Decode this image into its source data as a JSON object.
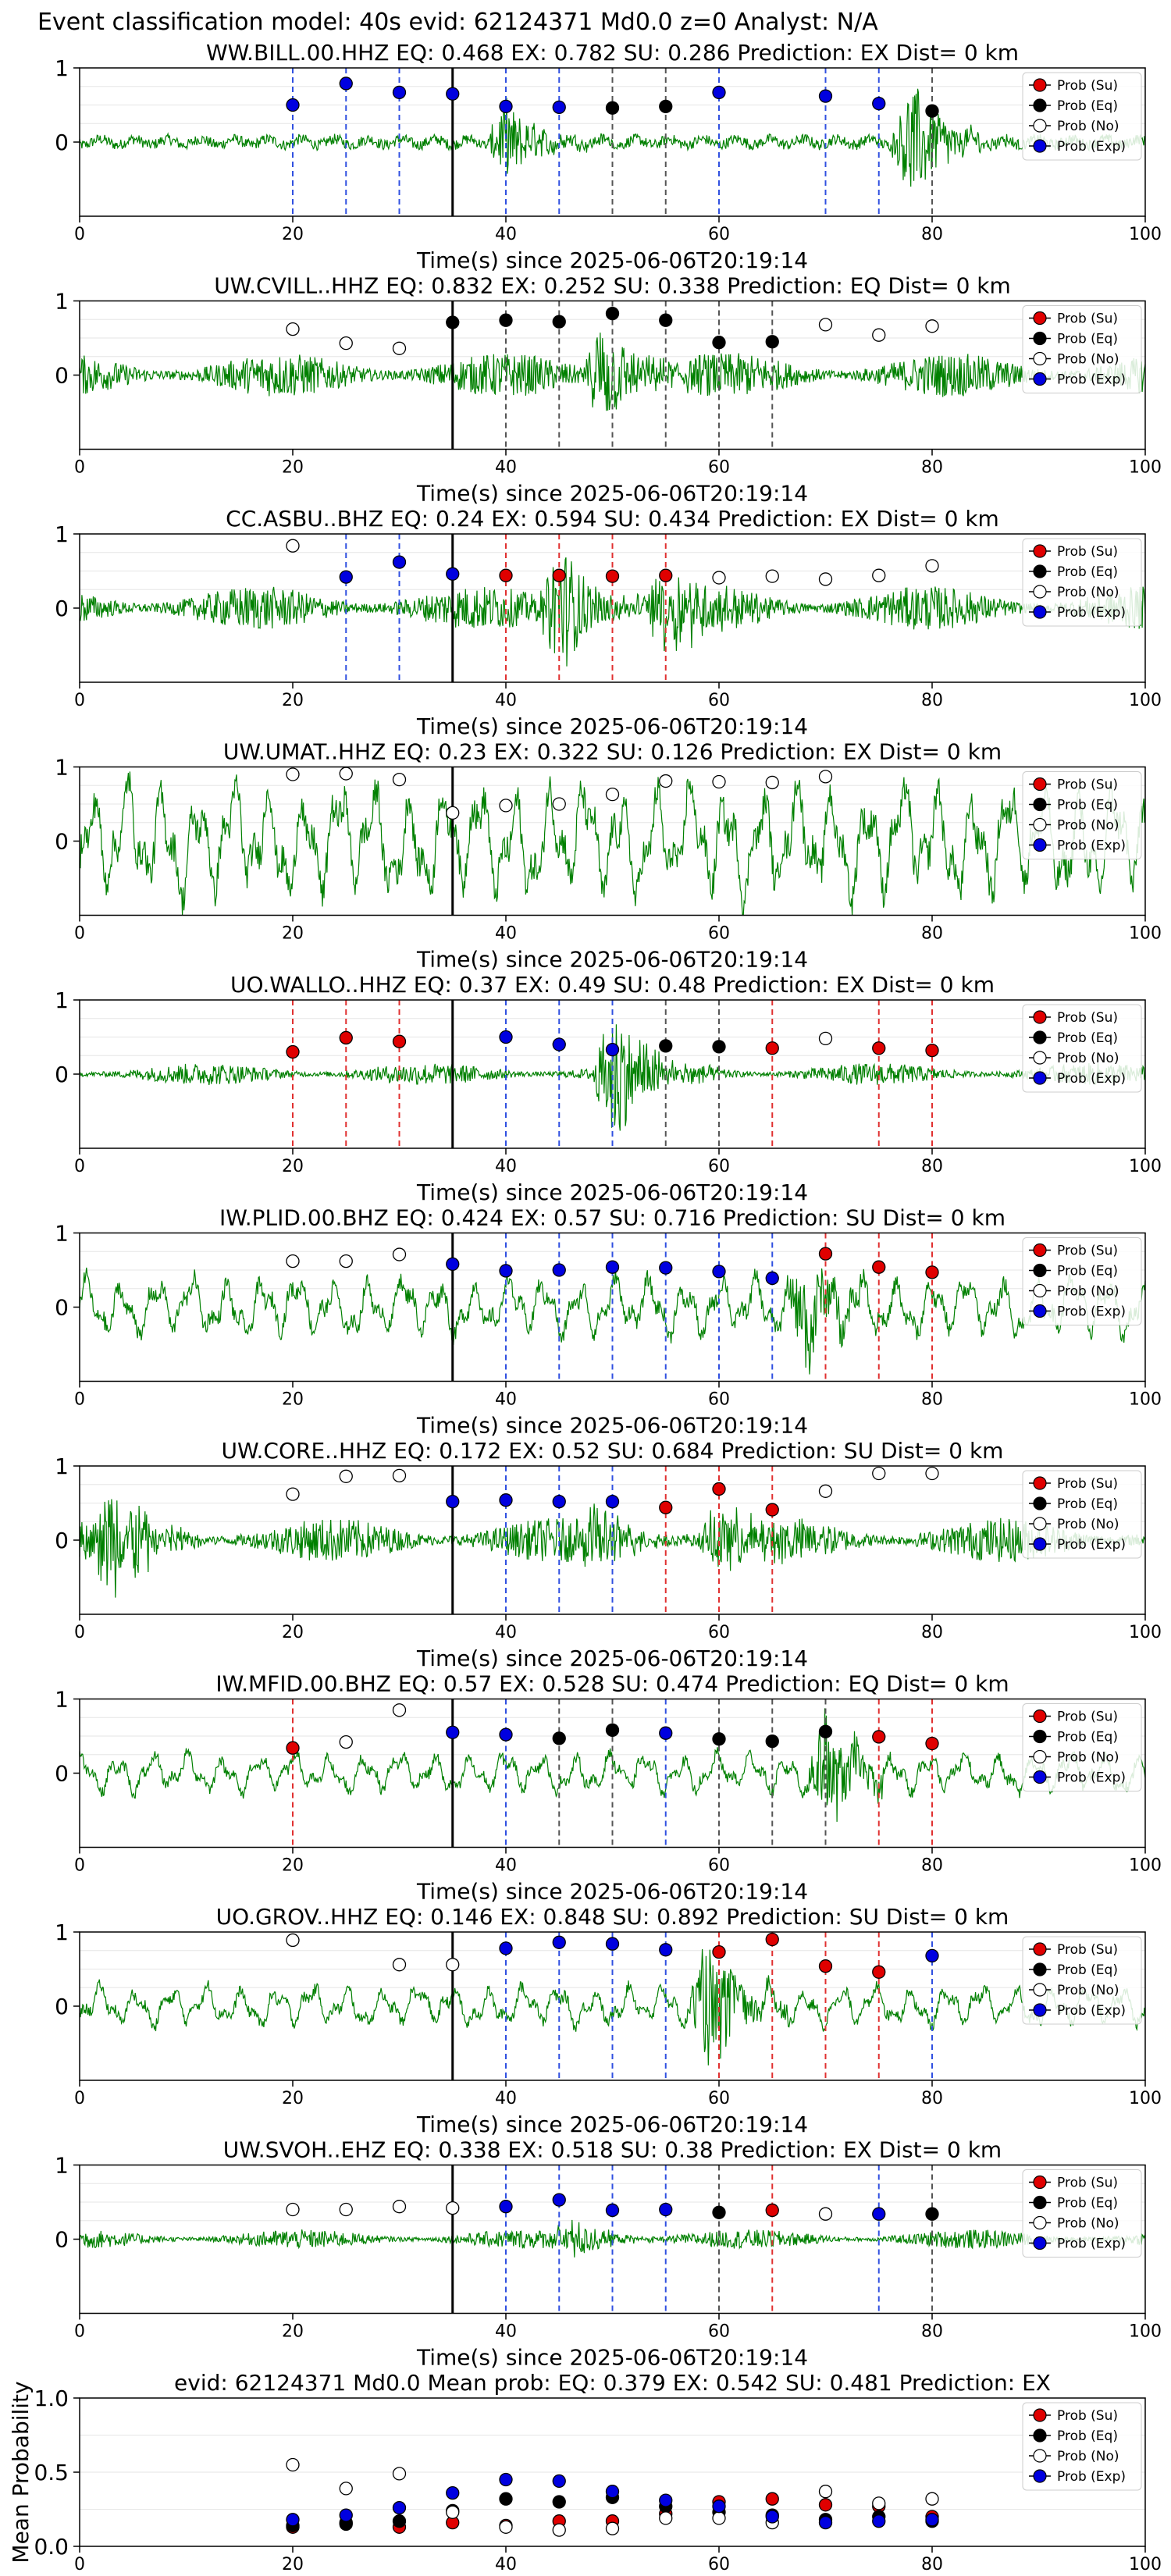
{
  "figure_title": "Event classification model: 40s evid: 62124371 Md0.0 z=0 Analyst: N/A",
  "legend_labels": [
    "Prob (Su)",
    "Prob (Eq)",
    "Prob (No)",
    "Prob (Exp)"
  ],
  "colors": {
    "su": "#e00000",
    "eq": "#000000",
    "no": "#ffffff",
    "exp": "#0000e0",
    "waveform": "#008000",
    "vline_su": "#e03030",
    "vline_eq": "#555555",
    "vline_exp": "#3050e0",
    "origin_line": "#000000"
  },
  "chart_data": [
    {
      "type": "line",
      "title": "WW.BILL.00.HHZ   EQ: 0.468  EX: 0.782  SU: 0.286   Prediction: EX    Dist= 0 km",
      "xlabel": "Time(s) since 2025-06-06T20:19:14",
      "xlim": [
        0,
        100
      ],
      "ylim": [
        -1,
        1
      ],
      "xticks": [
        0,
        20,
        40,
        60,
        80,
        100
      ],
      "yticks": [
        0,
        1
      ],
      "origin_time": 35,
      "waveform": {
        "amplitude": 0.12,
        "character": "low",
        "bursts": [
          [
            40,
            0.55
          ],
          [
            78,
            0.9
          ]
        ]
      },
      "points": [
        {
          "x": 20,
          "y": 0.5,
          "class": "exp"
        },
        {
          "x": 25,
          "y": 0.79,
          "class": "exp"
        },
        {
          "x": 30,
          "y": 0.67,
          "class": "exp"
        },
        {
          "x": 35,
          "y": 0.65,
          "class": "exp"
        },
        {
          "x": 40,
          "y": 0.48,
          "class": "exp"
        },
        {
          "x": 45,
          "y": 0.47,
          "class": "exp"
        },
        {
          "x": 50,
          "y": 0.46,
          "class": "eq"
        },
        {
          "x": 55,
          "y": 0.48,
          "class": "eq"
        },
        {
          "x": 60,
          "y": 0.67,
          "class": "exp"
        },
        {
          "x": 70,
          "y": 0.62,
          "class": "exp"
        },
        {
          "x": 75,
          "y": 0.52,
          "class": "exp"
        },
        {
          "x": 80,
          "y": 0.42,
          "class": "eq"
        }
      ]
    },
    {
      "type": "line",
      "title": "UW.CVILL..HHZ   EQ: 0.832  EX: 0.252  SU: 0.338   Prediction: EQ    Dist= 0 km",
      "xlabel": "Time(s) since 2025-06-06T20:19:14",
      "xlim": [
        0,
        100
      ],
      "ylim": [
        -1,
        1
      ],
      "xticks": [
        0,
        20,
        40,
        60,
        80,
        100
      ],
      "yticks": [
        0,
        1
      ],
      "origin_time": 35,
      "waveform": {
        "amplitude": 0.3,
        "character": "noisy",
        "bursts": [
          [
            49,
            0.8
          ]
        ]
      },
      "points": [
        {
          "x": 20,
          "y": 0.62,
          "class": "no"
        },
        {
          "x": 25,
          "y": 0.43,
          "class": "no"
        },
        {
          "x": 30,
          "y": 0.36,
          "class": "no"
        },
        {
          "x": 35,
          "y": 0.71,
          "class": "eq"
        },
        {
          "x": 40,
          "y": 0.74,
          "class": "eq"
        },
        {
          "x": 45,
          "y": 0.72,
          "class": "eq"
        },
        {
          "x": 50,
          "y": 0.83,
          "class": "eq"
        },
        {
          "x": 55,
          "y": 0.74,
          "class": "eq"
        },
        {
          "x": 60,
          "y": 0.44,
          "class": "eq"
        },
        {
          "x": 65,
          "y": 0.45,
          "class": "eq"
        },
        {
          "x": 70,
          "y": 0.68,
          "class": "no"
        },
        {
          "x": 75,
          "y": 0.54,
          "class": "no"
        },
        {
          "x": 80,
          "y": 0.66,
          "class": "no"
        }
      ]
    },
    {
      "type": "line",
      "title": "CC.ASBU..BHZ   EQ: 0.24  EX: 0.594  SU: 0.434   Prediction: EX    Dist= 0 km",
      "xlabel": "Time(s) since 2025-06-06T20:19:14",
      "xlim": [
        0,
        100
      ],
      "ylim": [
        -1,
        1
      ],
      "xticks": [
        0,
        20,
        40,
        60,
        80,
        100
      ],
      "yticks": [
        0,
        1
      ],
      "origin_time": 35,
      "waveform": {
        "amplitude": 0.3,
        "character": "noisy",
        "bursts": [
          [
            45,
            0.9
          ],
          [
            55,
            0.6
          ]
        ]
      },
      "points": [
        {
          "x": 20,
          "y": 0.84,
          "class": "no"
        },
        {
          "x": 25,
          "y": 0.42,
          "class": "exp"
        },
        {
          "x": 30,
          "y": 0.62,
          "class": "exp"
        },
        {
          "x": 35,
          "y": 0.46,
          "class": "exp"
        },
        {
          "x": 40,
          "y": 0.44,
          "class": "su"
        },
        {
          "x": 45,
          "y": 0.44,
          "class": "su"
        },
        {
          "x": 50,
          "y": 0.43,
          "class": "su"
        },
        {
          "x": 55,
          "y": 0.44,
          "class": "su"
        },
        {
          "x": 60,
          "y": 0.41,
          "class": "no"
        },
        {
          "x": 65,
          "y": 0.43,
          "class": "no"
        },
        {
          "x": 70,
          "y": 0.39,
          "class": "no"
        },
        {
          "x": 75,
          "y": 0.44,
          "class": "no"
        },
        {
          "x": 80,
          "y": 0.57,
          "class": "no"
        }
      ]
    },
    {
      "type": "line",
      "title": "UW.UMAT..HHZ   EQ: 0.23  EX: 0.322  SU: 0.126   Prediction: EX    Dist= 0 km",
      "xlabel": "Time(s) since 2025-06-06T20:19:14",
      "xlim": [
        0,
        100
      ],
      "ylim": [
        -1,
        1
      ],
      "xticks": [
        0,
        20,
        40,
        60,
        80,
        100
      ],
      "yticks": [
        0,
        1
      ],
      "origin_time": 35,
      "waveform": {
        "amplitude": 0.85,
        "character": "swell",
        "bursts": []
      },
      "points": [
        {
          "x": 20,
          "y": 0.9,
          "class": "no"
        },
        {
          "x": 25,
          "y": 0.91,
          "class": "no"
        },
        {
          "x": 30,
          "y": 0.83,
          "class": "no"
        },
        {
          "x": 35,
          "y": 0.38,
          "class": "no"
        },
        {
          "x": 40,
          "y": 0.48,
          "class": "no"
        },
        {
          "x": 45,
          "y": 0.5,
          "class": "no"
        },
        {
          "x": 50,
          "y": 0.63,
          "class": "no"
        },
        {
          "x": 55,
          "y": 0.81,
          "class": "no"
        },
        {
          "x": 60,
          "y": 0.8,
          "class": "no"
        },
        {
          "x": 65,
          "y": 0.79,
          "class": "no"
        },
        {
          "x": 70,
          "y": 0.87,
          "class": "no"
        }
      ]
    },
    {
      "type": "line",
      "title": "UO.WALLO..HHZ   EQ: 0.37  EX: 0.49  SU: 0.48   Prediction: EX    Dist= 0 km",
      "xlabel": "Time(s) since 2025-06-06T20:19:14",
      "xlim": [
        0,
        100
      ],
      "ylim": [
        -1,
        1
      ],
      "xticks": [
        0,
        20,
        40,
        60,
        80,
        100
      ],
      "yticks": [
        0,
        1
      ],
      "origin_time": 35,
      "waveform": {
        "amplitude": 0.15,
        "character": "noisy",
        "bursts": [
          [
            50,
            0.95
          ]
        ]
      },
      "points": [
        {
          "x": 20,
          "y": 0.3,
          "class": "su"
        },
        {
          "x": 25,
          "y": 0.49,
          "class": "su"
        },
        {
          "x": 30,
          "y": 0.44,
          "class": "su"
        },
        {
          "x": 40,
          "y": 0.5,
          "class": "exp"
        },
        {
          "x": 45,
          "y": 0.4,
          "class": "exp"
        },
        {
          "x": 50,
          "y": 0.33,
          "class": "exp"
        },
        {
          "x": 55,
          "y": 0.38,
          "class": "eq"
        },
        {
          "x": 60,
          "y": 0.37,
          "class": "eq"
        },
        {
          "x": 65,
          "y": 0.35,
          "class": "su"
        },
        {
          "x": 70,
          "y": 0.48,
          "class": "no"
        },
        {
          "x": 75,
          "y": 0.35,
          "class": "su"
        },
        {
          "x": 80,
          "y": 0.32,
          "class": "su"
        }
      ]
    },
    {
      "type": "line",
      "title": "IW.PLID.00.BHZ   EQ: 0.424  EX: 0.57  SU: 0.716   Prediction: SU    Dist= 0 km",
      "xlabel": "Time(s) since 2025-06-06T20:19:14",
      "xlim": [
        0,
        100
      ],
      "ylim": [
        -1,
        1
      ],
      "xticks": [
        0,
        20,
        40,
        60,
        80,
        100
      ],
      "yticks": [
        0,
        1
      ],
      "origin_time": 35,
      "waveform": {
        "amplitude": 0.45,
        "character": "swell",
        "bursts": [
          [
            68,
            0.6
          ]
        ]
      },
      "points": [
        {
          "x": 20,
          "y": 0.62,
          "class": "no"
        },
        {
          "x": 25,
          "y": 0.62,
          "class": "no"
        },
        {
          "x": 30,
          "y": 0.71,
          "class": "no"
        },
        {
          "x": 35,
          "y": 0.58,
          "class": "exp"
        },
        {
          "x": 40,
          "y": 0.49,
          "class": "exp"
        },
        {
          "x": 45,
          "y": 0.5,
          "class": "exp"
        },
        {
          "x": 50,
          "y": 0.54,
          "class": "exp"
        },
        {
          "x": 55,
          "y": 0.53,
          "class": "exp"
        },
        {
          "x": 60,
          "y": 0.48,
          "class": "exp"
        },
        {
          "x": 65,
          "y": 0.39,
          "class": "exp"
        },
        {
          "x": 70,
          "y": 0.72,
          "class": "su"
        },
        {
          "x": 75,
          "y": 0.54,
          "class": "su"
        },
        {
          "x": 80,
          "y": 0.47,
          "class": "su"
        }
      ]
    },
    {
      "type": "line",
      "title": "UW.CORE..HHZ   EQ: 0.172  EX: 0.52  SU: 0.684   Prediction: SU    Dist= 0 km",
      "xlabel": "Time(s) since 2025-06-06T20:19:14",
      "xlim": [
        0,
        100
      ],
      "ylim": [
        -1,
        1
      ],
      "xticks": [
        0,
        20,
        40,
        60,
        80,
        100
      ],
      "yticks": [
        0,
        1
      ],
      "origin_time": 35,
      "waveform": {
        "amplitude": 0.3,
        "character": "noisy",
        "bursts": [
          [
            3,
            0.75
          ],
          [
            48,
            0.5
          ],
          [
            60,
            0.45
          ]
        ]
      },
      "points": [
        {
          "x": 20,
          "y": 0.62,
          "class": "no"
        },
        {
          "x": 25,
          "y": 0.86,
          "class": "no"
        },
        {
          "x": 30,
          "y": 0.87,
          "class": "no"
        },
        {
          "x": 35,
          "y": 0.52,
          "class": "exp"
        },
        {
          "x": 40,
          "y": 0.54,
          "class": "exp"
        },
        {
          "x": 45,
          "y": 0.52,
          "class": "exp"
        },
        {
          "x": 50,
          "y": 0.52,
          "class": "exp"
        },
        {
          "x": 55,
          "y": 0.44,
          "class": "su"
        },
        {
          "x": 60,
          "y": 0.69,
          "class": "su"
        },
        {
          "x": 65,
          "y": 0.41,
          "class": "su"
        },
        {
          "x": 70,
          "y": 0.66,
          "class": "no"
        },
        {
          "x": 75,
          "y": 0.9,
          "class": "no"
        },
        {
          "x": 80,
          "y": 0.9,
          "class": "no"
        }
      ]
    },
    {
      "type": "line",
      "title": "IW.MFID.00.BHZ   EQ: 0.57  EX: 0.528  SU: 0.474   Prediction: EQ    Dist= 0 km",
      "xlabel": "Time(s) since 2025-06-06T20:19:14",
      "xlim": [
        0,
        100
      ],
      "ylim": [
        -1,
        1
      ],
      "xticks": [
        0,
        20,
        40,
        60,
        80,
        100
      ],
      "yticks": [
        0,
        1
      ],
      "origin_time": 35,
      "waveform": {
        "amplitude": 0.3,
        "character": "swell",
        "bursts": [
          [
            70,
            0.75
          ]
        ]
      },
      "points": [
        {
          "x": 20,
          "y": 0.34,
          "class": "su"
        },
        {
          "x": 25,
          "y": 0.42,
          "class": "no"
        },
        {
          "x": 30,
          "y": 0.85,
          "class": "no"
        },
        {
          "x": 35,
          "y": 0.55,
          "class": "exp"
        },
        {
          "x": 40,
          "y": 0.52,
          "class": "exp"
        },
        {
          "x": 45,
          "y": 0.47,
          "class": "eq"
        },
        {
          "x": 50,
          "y": 0.58,
          "class": "eq"
        },
        {
          "x": 55,
          "y": 0.54,
          "class": "exp"
        },
        {
          "x": 60,
          "y": 0.46,
          "class": "eq"
        },
        {
          "x": 65,
          "y": 0.43,
          "class": "eq"
        },
        {
          "x": 70,
          "y": 0.56,
          "class": "eq"
        },
        {
          "x": 75,
          "y": 0.49,
          "class": "su"
        },
        {
          "x": 80,
          "y": 0.4,
          "class": "su"
        }
      ]
    },
    {
      "type": "line",
      "title": "UO.GROV..HHZ   EQ: 0.146  EX: 0.848  SU: 0.892   Prediction: SU    Dist= 0 km",
      "xlabel": "Time(s) since 2025-06-06T20:19:14",
      "xlim": [
        0,
        100
      ],
      "ylim": [
        -1,
        1
      ],
      "xticks": [
        0,
        20,
        40,
        60,
        80,
        100
      ],
      "yticks": [
        0,
        1
      ],
      "origin_time": 35,
      "waveform": {
        "amplitude": 0.3,
        "character": "swell",
        "bursts": [
          [
            59,
            0.9
          ]
        ]
      },
      "points": [
        {
          "x": 20,
          "y": 0.89,
          "class": "no"
        },
        {
          "x": 30,
          "y": 0.56,
          "class": "no"
        },
        {
          "x": 35,
          "y": 0.56,
          "class": "no"
        },
        {
          "x": 40,
          "y": 0.78,
          "class": "exp"
        },
        {
          "x": 45,
          "y": 0.86,
          "class": "exp"
        },
        {
          "x": 50,
          "y": 0.84,
          "class": "exp"
        },
        {
          "x": 55,
          "y": 0.76,
          "class": "exp"
        },
        {
          "x": 60,
          "y": 0.73,
          "class": "su"
        },
        {
          "x": 65,
          "y": 0.9,
          "class": "su"
        },
        {
          "x": 70,
          "y": 0.54,
          "class": "su"
        },
        {
          "x": 75,
          "y": 0.46,
          "class": "su"
        },
        {
          "x": 80,
          "y": 0.68,
          "class": "exp"
        }
      ]
    },
    {
      "type": "line",
      "title": "UW.SVOH..EHZ   EQ: 0.338  EX: 0.518  SU: 0.38   Prediction: EX    Dist= 0 km",
      "xlabel": "Time(s) since 2025-06-06T20:19:14",
      "xlim": [
        0,
        100
      ],
      "ylim": [
        -1,
        1
      ],
      "xticks": [
        0,
        20,
        40,
        60,
        80,
        100
      ],
      "yticks": [
        0,
        1
      ],
      "origin_time": 35,
      "waveform": {
        "amplitude": 0.13,
        "character": "noisy",
        "bursts": [
          [
            46,
            0.3
          ]
        ]
      },
      "points": [
        {
          "x": 20,
          "y": 0.4,
          "class": "no"
        },
        {
          "x": 25,
          "y": 0.4,
          "class": "no"
        },
        {
          "x": 30,
          "y": 0.44,
          "class": "no"
        },
        {
          "x": 35,
          "y": 0.42,
          "class": "no"
        },
        {
          "x": 40,
          "y": 0.44,
          "class": "exp"
        },
        {
          "x": 45,
          "y": 0.53,
          "class": "exp"
        },
        {
          "x": 50,
          "y": 0.39,
          "class": "exp"
        },
        {
          "x": 55,
          "y": 0.4,
          "class": "exp"
        },
        {
          "x": 60,
          "y": 0.36,
          "class": "eq"
        },
        {
          "x": 65,
          "y": 0.39,
          "class": "su"
        },
        {
          "x": 70,
          "y": 0.34,
          "class": "no"
        },
        {
          "x": 75,
          "y": 0.34,
          "class": "exp"
        },
        {
          "x": 80,
          "y": 0.34,
          "class": "eq"
        }
      ]
    },
    {
      "type": "scatter",
      "title": "evid: 62124371  Md0.0   Mean prob:   EQ: 0.379  EX: 0.542  SU: 0.481   Prediction: EX",
      "ylabel": "Mean Probability",
      "xlim": [
        0,
        100
      ],
      "ylim": [
        0,
        1
      ],
      "xticks": [
        0,
        20,
        40,
        60,
        80,
        100
      ],
      "yticks": [
        0.0,
        0.5,
        1.0
      ],
      "x": [
        20,
        25,
        30,
        35,
        40,
        45,
        50,
        55,
        60,
        65,
        70,
        75,
        80
      ],
      "series": [
        {
          "name": "Prob (Su)",
          "class": "su",
          "values": [
            0.13,
            0.16,
            0.13,
            0.16,
            0.14,
            0.17,
            0.17,
            0.22,
            0.3,
            0.32,
            0.28,
            0.27,
            0.2
          ]
        },
        {
          "name": "Prob (Eq)",
          "class": "eq",
          "values": [
            0.14,
            0.15,
            0.17,
            0.24,
            0.32,
            0.3,
            0.33,
            0.27,
            0.23,
            0.21,
            0.18,
            0.2,
            0.17
          ]
        },
        {
          "name": "Prob (No)",
          "class": "no",
          "values": [
            0.55,
            0.39,
            0.49,
            0.23,
            0.13,
            0.11,
            0.12,
            0.19,
            0.19,
            0.16,
            0.37,
            0.29,
            0.32
          ]
        },
        {
          "name": "Prob (Exp)",
          "class": "exp",
          "values": [
            0.18,
            0.21,
            0.26,
            0.36,
            0.45,
            0.44,
            0.37,
            0.31,
            0.27,
            0.2,
            0.16,
            0.17,
            0.18
          ]
        }
      ]
    }
  ]
}
